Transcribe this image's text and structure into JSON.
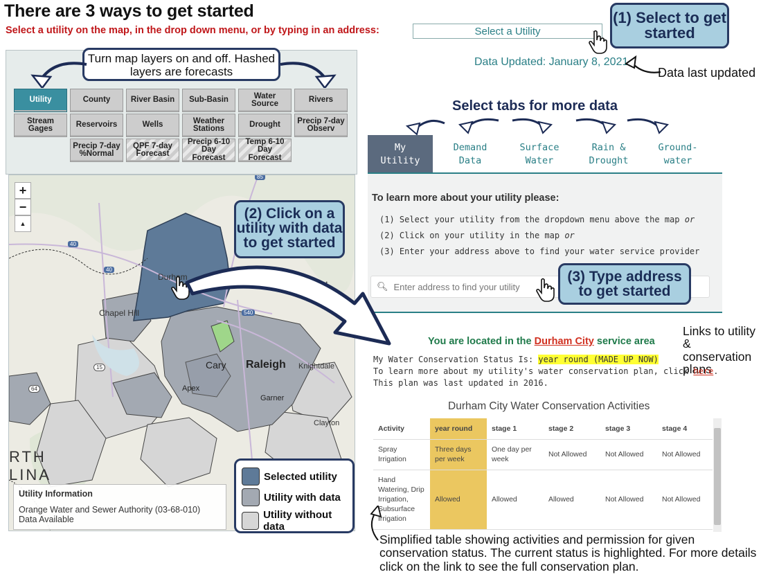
{
  "header": {
    "title": "There are 3 ways to get started",
    "instruction": "Select a utility on the map, in the drop down menu, or by typing in an address:",
    "select_placeholder": "Select a Utility",
    "data_updated": "Data Updated: January 8, 2021"
  },
  "callouts": {
    "select": "(1) Select to get started",
    "click": "(2) Click on a utility with data to get started",
    "type": "(3) Type address to get started"
  },
  "annotations": {
    "layers": "Turn map layers on and off. Hashed layers are forecasts",
    "data_last": "Data last updated",
    "tabs": "Select tabs for more data",
    "links": "Links to utility & conservation plans",
    "bottom": "Simplified table showing activities and permission for given conservation status. The current status is highlighted. For more details click on the link to see the full conservation plan."
  },
  "layers": {
    "row1": [
      "Utility",
      "County",
      "River Basin",
      "Sub-Basin",
      "Water Source",
      "Rivers"
    ],
    "row2": [
      "Stream Gages",
      "Reservoirs",
      "Wells",
      "Weather Stations",
      "Drought",
      "Precip 7-day Observ"
    ],
    "row3": [
      "Precip 7-day %Normal",
      "QPF 7-day Forecast",
      "Precip 6-10 Day Forecast",
      "Temp 6-10 Day Forecast"
    ],
    "active": "Utility"
  },
  "map": {
    "zoom_in": "+",
    "zoom_out": "−",
    "reset": "▲",
    "places": [
      "Durham",
      "Chapel Hill",
      "Cary",
      "Raleigh",
      "Apex",
      "Garner",
      "Knightdale",
      "Clayton",
      "Forest"
    ],
    "highways": [
      "85",
      "40",
      "40",
      "540",
      "15",
      "64",
      "40"
    ],
    "partial_label_1": "RTH",
    "partial_label_2": "LINA",
    "info_title": "Utility Information",
    "info_text": "Orange Water and Sewer Authority (03-68-010) Data Available",
    "legend": [
      "Selected utility",
      "Utility with data",
      "Utility without data"
    ]
  },
  "tabs": [
    {
      "line1": "My",
      "line2": "Utility"
    },
    {
      "line1": "Demand",
      "line2": "Data"
    },
    {
      "line1": "Surface",
      "line2": "Water"
    },
    {
      "line1": "Rain &",
      "line2": "Drought"
    },
    {
      "line1": "Ground-",
      "line2": "water"
    }
  ],
  "info": {
    "learn_heading": "To learn more about your utility please:",
    "step1": "(1) Select your utility from the dropdown menu above the map",
    "step1_em": "or",
    "step2": "(2) Click on your utility in the map",
    "step2_em": "or",
    "step3": "(3) Enter your address above to find your water service provider",
    "address_placeholder": "Enter address to find your utility"
  },
  "location": {
    "prefix": "You are located in the",
    "utility": "Durham City",
    "suffix": "service area",
    "status_label": "My Water Conservation Status Is:",
    "status_value": "year round (MADE UP NOW)",
    "plan_text": "To learn more about my utility's water conservation plan, click",
    "plan_link": "here",
    "updated": "This plan was last updated in 2016."
  },
  "table": {
    "title": "Durham City Water Conservation Activities",
    "headers": [
      "Activity",
      "year round",
      "stage 1",
      "stage 2",
      "stage 3",
      "stage 4"
    ],
    "rows": [
      [
        "Spray Irrigation",
        "Three days per week",
        "One day per week",
        "Not Allowed",
        "Not Allowed",
        "Not Allowed"
      ],
      [
        "Hand Watering, Drip Irrigation, Subsurface Irrigation",
        "Allowed",
        "Allowed",
        "Allowed",
        "Not Allowed",
        "Not Allowed"
      ]
    ]
  },
  "colors": {
    "callout_fill": "#a9cfe0",
    "callout_border": "#283a63",
    "teal": "#2a7f86",
    "selected_utility": "#5e7a98",
    "utility_with_data": "#a3a9b2",
    "utility_without_data": "#d6d6d6",
    "highlight": "#ebc760"
  }
}
